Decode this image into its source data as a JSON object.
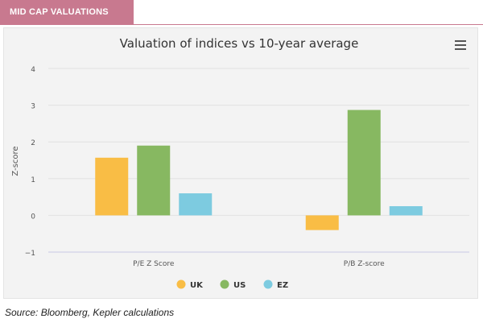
{
  "tab": {
    "label": "MID CAP VALUATIONS"
  },
  "source": "Source: Bloomberg, Kepler calculations",
  "colors": {
    "tab": "#c8798f",
    "UK": "#f9bd45",
    "US": "#87b861",
    "EZ": "#7dcbe0"
  },
  "chart_data": {
    "type": "bar",
    "title": "Valuation of indices vs 10-year average",
    "xlabel": "",
    "ylabel": "Z-score",
    "categories": [
      "P/E Z Score",
      "P/B Z-score"
    ],
    "series": [
      {
        "name": "UK",
        "values": [
          1.57,
          -0.4
        ]
      },
      {
        "name": "US",
        "values": [
          1.9,
          2.87
        ]
      },
      {
        "name": "EZ",
        "values": [
          0.6,
          0.25
        ]
      }
    ],
    "ylim": [
      -1,
      4
    ],
    "yticks": [
      -1,
      0,
      1,
      2,
      3,
      4
    ],
    "grid": true,
    "legend": "bottom-center"
  }
}
